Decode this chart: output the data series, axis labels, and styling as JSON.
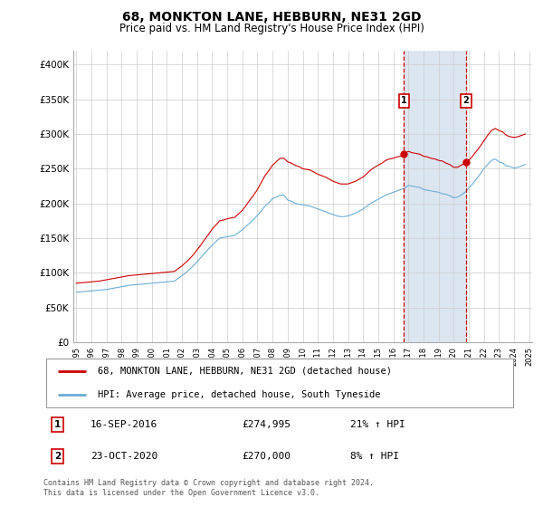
{
  "title": "68, MONKTON LANE, HEBBURN, NE31 2GD",
  "subtitle": "Price paid vs. HM Land Registry's House Price Index (HPI)",
  "legend_line1": "68, MONKTON LANE, HEBBURN, NE31 2GD (detached house)",
  "legend_line2": "HPI: Average price, detached house, South Tyneside",
  "footnote": "Contains HM Land Registry data © Crown copyright and database right 2024.\nThis data is licensed under the Open Government Licence v3.0.",
  "marker1_date": "16-SEP-2016",
  "marker1_price": "£274,995",
  "marker1_hpi": "21% ↑ HPI",
  "marker2_date": "23-OCT-2020",
  "marker2_price": "£270,000",
  "marker2_hpi": "8% ↑ HPI",
  "red_color": "#cc0000",
  "blue_color": "#6baed6",
  "marker_box_color": "#cc0000",
  "shaded_region_color": "#dce6f1",
  "ylim": [
    0,
    420000
  ],
  "yticks": [
    0,
    50000,
    100000,
    150000,
    200000,
    250000,
    300000,
    350000,
    400000
  ],
  "ytick_labels": [
    "£0",
    "£50K",
    "£100K",
    "£150K",
    "£200K",
    "£250K",
    "£300K",
    "£350K",
    "£400K"
  ],
  "year_start": 1995,
  "year_end": 2025,
  "marker1_year": 2016.71,
  "marker2_year": 2020.81,
  "hpi_red_x": [
    1995.0,
    1995.25,
    1995.5,
    1995.75,
    1996.0,
    1996.25,
    1996.5,
    1996.75,
    1997.0,
    1997.25,
    1997.5,
    1997.75,
    1998.0,
    1998.25,
    1998.5,
    1998.75,
    1999.0,
    1999.25,
    1999.5,
    1999.75,
    2000.0,
    2000.25,
    2000.5,
    2000.75,
    2001.0,
    2001.25,
    2001.5,
    2001.75,
    2002.0,
    2002.25,
    2002.5,
    2002.75,
    2003.0,
    2003.25,
    2003.5,
    2003.75,
    2004.0,
    2004.25,
    2004.5,
    2004.75,
    2005.0,
    2005.25,
    2005.5,
    2005.75,
    2006.0,
    2006.25,
    2006.5,
    2006.75,
    2007.0,
    2007.25,
    2007.5,
    2007.75,
    2008.0,
    2008.25,
    2008.5,
    2008.75,
    2009.0,
    2009.25,
    2009.5,
    2009.75,
    2010.0,
    2010.25,
    2010.5,
    2010.75,
    2011.0,
    2011.25,
    2011.5,
    2011.75,
    2012.0,
    2012.25,
    2012.5,
    2012.75,
    2013.0,
    2013.25,
    2013.5,
    2013.75,
    2014.0,
    2014.25,
    2014.5,
    2014.75,
    2015.0,
    2015.25,
    2015.5,
    2015.75,
    2016.0,
    2016.25,
    2016.5,
    2016.75,
    2017.0,
    2017.25,
    2017.5,
    2017.75,
    2018.0,
    2018.25,
    2018.5,
    2018.75,
    2019.0,
    2019.25,
    2019.5,
    2019.75,
    2020.0,
    2020.25,
    2020.5,
    2020.75,
    2021.0,
    2021.25,
    2021.5,
    2021.75,
    2022.0,
    2022.25,
    2022.5,
    2022.75,
    2023.0,
    2023.25,
    2023.5,
    2023.75,
    2024.0,
    2024.25,
    2024.5,
    2024.75
  ],
  "hpi_red_y": [
    85000,
    85500,
    86000,
    86500,
    87000,
    87500,
    88000,
    89000,
    90000,
    91000,
    92000,
    93000,
    94000,
    95000,
    96000,
    96500,
    97000,
    97500,
    98000,
    98500,
    99000,
    99500,
    100000,
    100500,
    101000,
    101500,
    102000,
    106000,
    110000,
    115000,
    120000,
    126000,
    133000,
    140000,
    148000,
    155000,
    163000,
    169000,
    175000,
    176000,
    178000,
    179000,
    180000,
    185000,
    190000,
    197000,
    205000,
    212000,
    220000,
    230000,
    240000,
    247000,
    255000,
    260000,
    265000,
    265000,
    260000,
    258000,
    255000,
    253000,
    250000,
    249000,
    248000,
    245000,
    242000,
    240000,
    238000,
    235000,
    232000,
    230000,
    228000,
    228000,
    228000,
    230000,
    232000,
    235000,
    238000,
    243000,
    248000,
    252000,
    255000,
    258000,
    262000,
    264000,
    265000,
    267000,
    268000,
    272000,
    275000,
    273000,
    272000,
    271000,
    268000,
    267000,
    265000,
    264000,
    262000,
    261000,
    258000,
    256000,
    252000,
    252000,
    255000,
    258000,
    262000,
    268000,
    275000,
    282000,
    290000,
    298000,
    305000,
    308000,
    305000,
    303000,
    298000,
    296000,
    295000,
    296000,
    298000,
    300000
  ],
  "hpi_blue_x": [
    1995.0,
    1995.25,
    1995.5,
    1995.75,
    1996.0,
    1996.25,
    1996.5,
    1996.75,
    1997.0,
    1997.25,
    1997.5,
    1997.75,
    1998.0,
    1998.25,
    1998.5,
    1998.75,
    1999.0,
    1999.25,
    1999.5,
    1999.75,
    2000.0,
    2000.25,
    2000.5,
    2000.75,
    2001.0,
    2001.25,
    2001.5,
    2001.75,
    2002.0,
    2002.25,
    2002.5,
    2002.75,
    2003.0,
    2003.25,
    2003.5,
    2003.75,
    2004.0,
    2004.25,
    2004.5,
    2004.75,
    2005.0,
    2005.25,
    2005.5,
    2005.75,
    2006.0,
    2006.25,
    2006.5,
    2006.75,
    2007.0,
    2007.25,
    2007.5,
    2007.75,
    2008.0,
    2008.25,
    2008.5,
    2008.75,
    2009.0,
    2009.25,
    2009.5,
    2009.75,
    2010.0,
    2010.25,
    2010.5,
    2010.75,
    2011.0,
    2011.25,
    2011.5,
    2011.75,
    2012.0,
    2012.25,
    2012.5,
    2012.75,
    2013.0,
    2013.25,
    2013.5,
    2013.75,
    2014.0,
    2014.25,
    2014.5,
    2014.75,
    2015.0,
    2015.25,
    2015.5,
    2015.75,
    2016.0,
    2016.25,
    2016.5,
    2016.75,
    2017.0,
    2017.25,
    2017.5,
    2017.75,
    2018.0,
    2018.25,
    2018.5,
    2018.75,
    2019.0,
    2019.25,
    2019.5,
    2019.75,
    2020.0,
    2020.25,
    2020.5,
    2020.75,
    2021.0,
    2021.25,
    2021.5,
    2021.75,
    2022.0,
    2022.25,
    2022.5,
    2022.75,
    2023.0,
    2023.25,
    2023.5,
    2023.75,
    2024.0,
    2024.25,
    2024.5,
    2024.75
  ],
  "hpi_blue_y": [
    72000,
    72500,
    73000,
    73500,
    74000,
    74500,
    75000,
    75500,
    76000,
    77000,
    78000,
    79000,
    80000,
    81000,
    82000,
    82500,
    83000,
    83500,
    84000,
    84500,
    85000,
    85500,
    86000,
    86500,
    87000,
    87500,
    88000,
    92000,
    96000,
    100000,
    105000,
    110000,
    116000,
    122000,
    128000,
    134000,
    140000,
    145000,
    150000,
    151000,
    152000,
    153000,
    154000,
    158000,
    162000,
    167000,
    172000,
    177000,
    183000,
    189000,
    196000,
    201000,
    207000,
    209000,
    212000,
    212000,
    205000,
    203000,
    200000,
    199000,
    198000,
    197000,
    196000,
    194000,
    192000,
    190000,
    188000,
    186000,
    184000,
    182000,
    181000,
    181000,
    182000,
    184000,
    186000,
    189000,
    192000,
    196000,
    200000,
    203000,
    206000,
    209000,
    212000,
    214000,
    216000,
    218000,
    220000,
    222000,
    226000,
    225000,
    224000,
    223000,
    220000,
    219000,
    218000,
    217000,
    216000,
    214000,
    213000,
    211000,
    208000,
    209000,
    212000,
    216000,
    222000,
    228000,
    235000,
    242000,
    250000,
    256000,
    262000,
    264000,
    260000,
    258000,
    254000,
    253000,
    251000,
    252000,
    254000,
    256000
  ]
}
